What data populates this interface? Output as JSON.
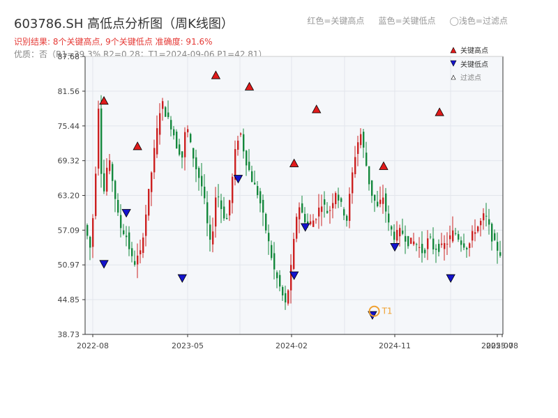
{
  "header": {
    "title": "603786.SH 高低点分析图（周K线图）",
    "result_text": "识别结果: 8个关键高点, 9个关键低点  准确度: 91.6%",
    "quality_text": "优质：否（R1=39.3%  R2=0.28；T1=2024-09-06 P1=42.81）",
    "legend_red": "红色=关键高点",
    "legend_blue": "蓝色=关键低点",
    "legend_light": "◯浅色=过滤点"
  },
  "legend": {
    "high": "关键高点",
    "low": "关键低点",
    "filtered": "过滤点"
  },
  "colors": {
    "up": "#cc2020",
    "down": "#14883c",
    "high_marker": "#e01b1b",
    "low_marker": "#1414cc",
    "t1": "#f0a030",
    "axis": "#333333",
    "plot_bg": "#f5f7fa"
  },
  "chart_data": {
    "type": "candlestick",
    "title": "603786.SH 高低点分析图（周K线图）",
    "y_ticks": [
      "87.68",
      "81.56",
      "75.44",
      "69.32",
      "63.20",
      "57.09",
      "50.97",
      "44.85",
      "38.73"
    ],
    "ylim": [
      38.73,
      87.68
    ],
    "x_ticks": [
      "2022-08",
      "2023-05",
      "2024-02",
      "2024-11",
      "2025-07",
      "2025-08"
    ],
    "key_highs": [
      {
        "date": "2022-09",
        "price": 79
      },
      {
        "date": "2022-12",
        "price": 71
      },
      {
        "date": "2023-07",
        "price": 83.5
      },
      {
        "date": "2023-10",
        "price": 81.5
      },
      {
        "date": "2024-02",
        "price": 68
      },
      {
        "date": "2024-04",
        "price": 77.5
      },
      {
        "date": "2024-10",
        "price": 67.5
      },
      {
        "date": "2025-03",
        "price": 77
      }
    ],
    "key_lows": [
      {
        "date": "2022-09",
        "price": 52
      },
      {
        "date": "2022-11",
        "price": 61
      },
      {
        "date": "2023-04",
        "price": 49.5
      },
      {
        "date": "2023-09",
        "price": 67
      },
      {
        "date": "2024-02",
        "price": 50
      },
      {
        "date": "2024-03",
        "price": 58.5
      },
      {
        "date": "2024-09",
        "price": 43
      },
      {
        "date": "2024-11",
        "price": 55
      },
      {
        "date": "2025-04",
        "price": 49.5
      }
    ],
    "t1": {
      "label": "T1",
      "date": "2024-09-06",
      "price": 42.81
    },
    "grid": true,
    "legend_position": "top-right"
  }
}
